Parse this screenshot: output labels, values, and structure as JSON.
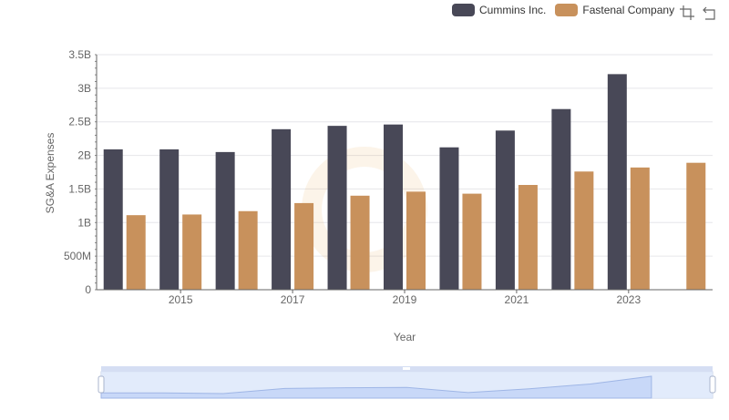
{
  "chart_data": {
    "type": "bar",
    "categories": [
      "2014",
      "2015",
      "2016",
      "2017",
      "2018",
      "2019",
      "2020",
      "2021",
      "2022",
      "2023",
      "2024"
    ],
    "tick_labels_x": [
      "2015",
      "2017",
      "2019",
      "2021",
      "2023"
    ],
    "series": [
      {
        "name": "Cummins Inc.",
        "color": "#484857",
        "values": [
          2.09,
          2.09,
          2.05,
          2.39,
          2.44,
          2.46,
          2.12,
          2.37,
          2.69,
          3.21,
          null
        ]
      },
      {
        "name": "Fastenal Company",
        "color": "#c8915c",
        "values": [
          1.11,
          1.12,
          1.17,
          1.29,
          1.4,
          1.46,
          1.43,
          1.56,
          1.76,
          1.82,
          1.89
        ]
      }
    ],
    "xlabel": "Year",
    "ylabel": "SG&A Expenses",
    "yticks": [
      {
        "v": 0,
        "label": "0"
      },
      {
        "v": 0.5,
        "label": "500M"
      },
      {
        "v": 1,
        "label": "1B"
      },
      {
        "v": 1.5,
        "label": "1.5B"
      },
      {
        "v": 2,
        "label": "2B"
      },
      {
        "v": 2.5,
        "label": "2.5B"
      },
      {
        "v": 3,
        "label": "3B"
      },
      {
        "v": 3.5,
        "label": "3.5B"
      }
    ],
    "ylim": [
      0,
      3.5
    ],
    "grid": true,
    "legend_position": "top-right"
  },
  "toolbox": {
    "zoom_icon": "zoom-icon",
    "restore_icon": "restore-icon"
  }
}
